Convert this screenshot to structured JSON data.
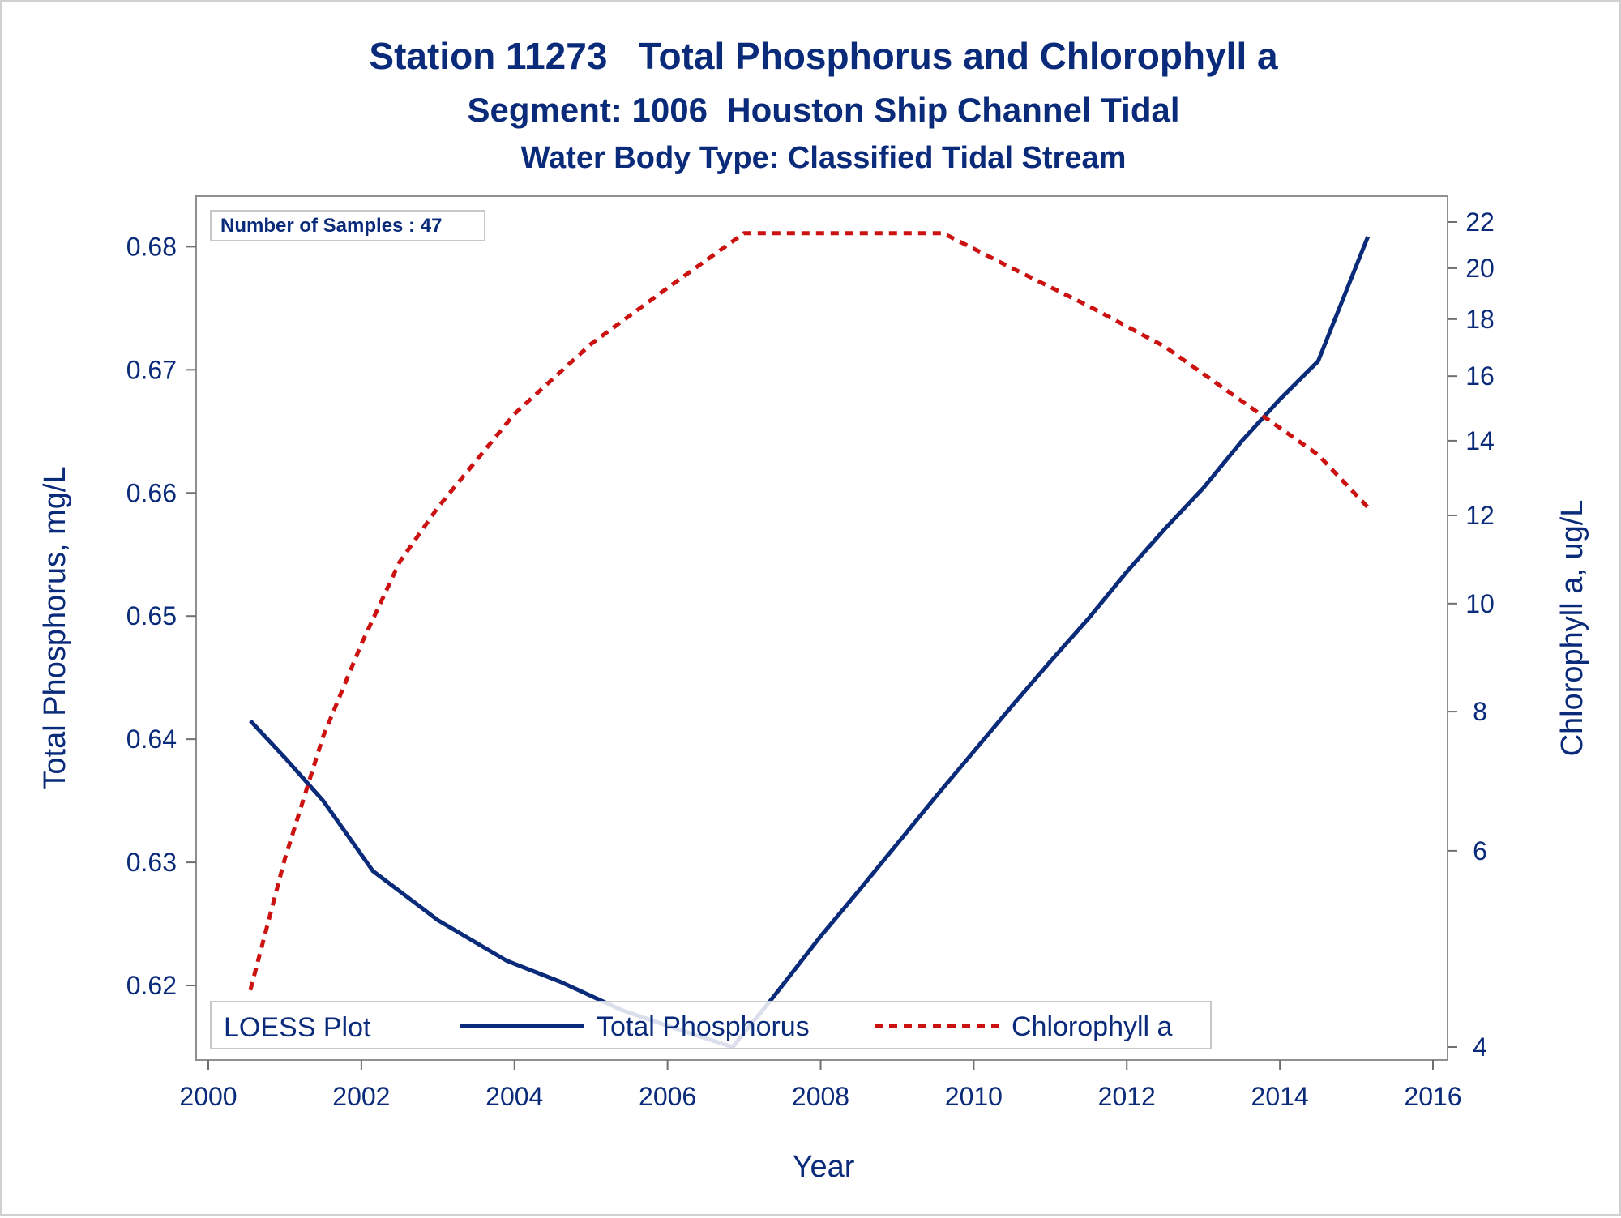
{
  "chart_data": {
    "type": "line",
    "title": "Station 11273   Total Phosphorus and Chlorophyll a",
    "subtitle": "Segment: 1006  Houston Ship Channel Tidal",
    "subtitle2": "Water Body Type: Classified Tidal Stream",
    "xlabel": "Year",
    "ylabel": "Total Phosphorus, mg/L",
    "y2label": "Chlorophyll a, ug/L",
    "xlim": [
      2000,
      2016
    ],
    "ylim": [
      0.615,
      0.682
    ],
    "y2lim": [
      4,
      22
    ],
    "y2_scale": "log",
    "x_ticks": [
      "2000",
      "2002",
      "2004",
      "2006",
      "2008",
      "2010",
      "2012",
      "2014",
      "2016"
    ],
    "y_ticks": [
      "0.62",
      "0.63",
      "0.64",
      "0.65",
      "0.66",
      "0.67",
      "0.68"
    ],
    "y2_ticks": [
      "4",
      "6",
      "8",
      "10",
      "12",
      "14",
      "16",
      "18",
      "20",
      "22"
    ],
    "grid": false,
    "inset_text": "Number of Samples : 47",
    "legend": {
      "title": "LOESS Plot",
      "position": "bottom-left inside",
      "entries": [
        "Total Phosphorus",
        "Chlorophyll a"
      ]
    },
    "series": [
      {
        "name": "Total Phosphorus",
        "axis": "left",
        "style": "solid",
        "color": "#0a2a7a",
        "x": [
          2000.55,
          2001.0,
          2001.5,
          2002.15,
          2003.0,
          2003.9,
          2004.6,
          2005.4,
          2006.2,
          2006.85,
          2007.4,
          2008.0,
          2008.5,
          2009.0,
          2009.5,
          2010.0,
          2010.5,
          2011.0,
          2011.5,
          2012.0,
          2012.5,
          2013.0,
          2013.5,
          2014.0,
          2014.5,
          2015.15
        ],
        "y": [
          0.6415,
          0.6385,
          0.635,
          0.6293,
          0.6253,
          0.622,
          0.6203,
          0.618,
          0.6163,
          0.615,
          0.6192,
          0.624,
          0.6277,
          0.6315,
          0.6353,
          0.639,
          0.6427,
          0.6463,
          0.6498,
          0.6536,
          0.6571,
          0.6604,
          0.6642,
          0.6676,
          0.6707,
          0.6808
        ]
      },
      {
        "name": "Chlorophyll a",
        "axis": "right",
        "style": "dashed",
        "color": "#cc1111",
        "x": [
          2000.55,
          2001.0,
          2001.5,
          2002.0,
          2002.5,
          2003.0,
          2004.0,
          2005.0,
          2006.0,
          2007.0,
          2008.0,
          2009.0,
          2009.6,
          2010.5,
          2011.5,
          2012.5,
          2013.5,
          2014.5,
          2015.15
        ],
        "y": [
          4.5,
          5.9,
          7.6,
          9.2,
          10.9,
          12.2,
          14.8,
          17.1,
          19.2,
          21.5,
          21.5,
          21.5,
          21.5,
          20.0,
          18.5,
          17.0,
          15.2,
          13.6,
          12.2
        ]
      }
    ]
  }
}
